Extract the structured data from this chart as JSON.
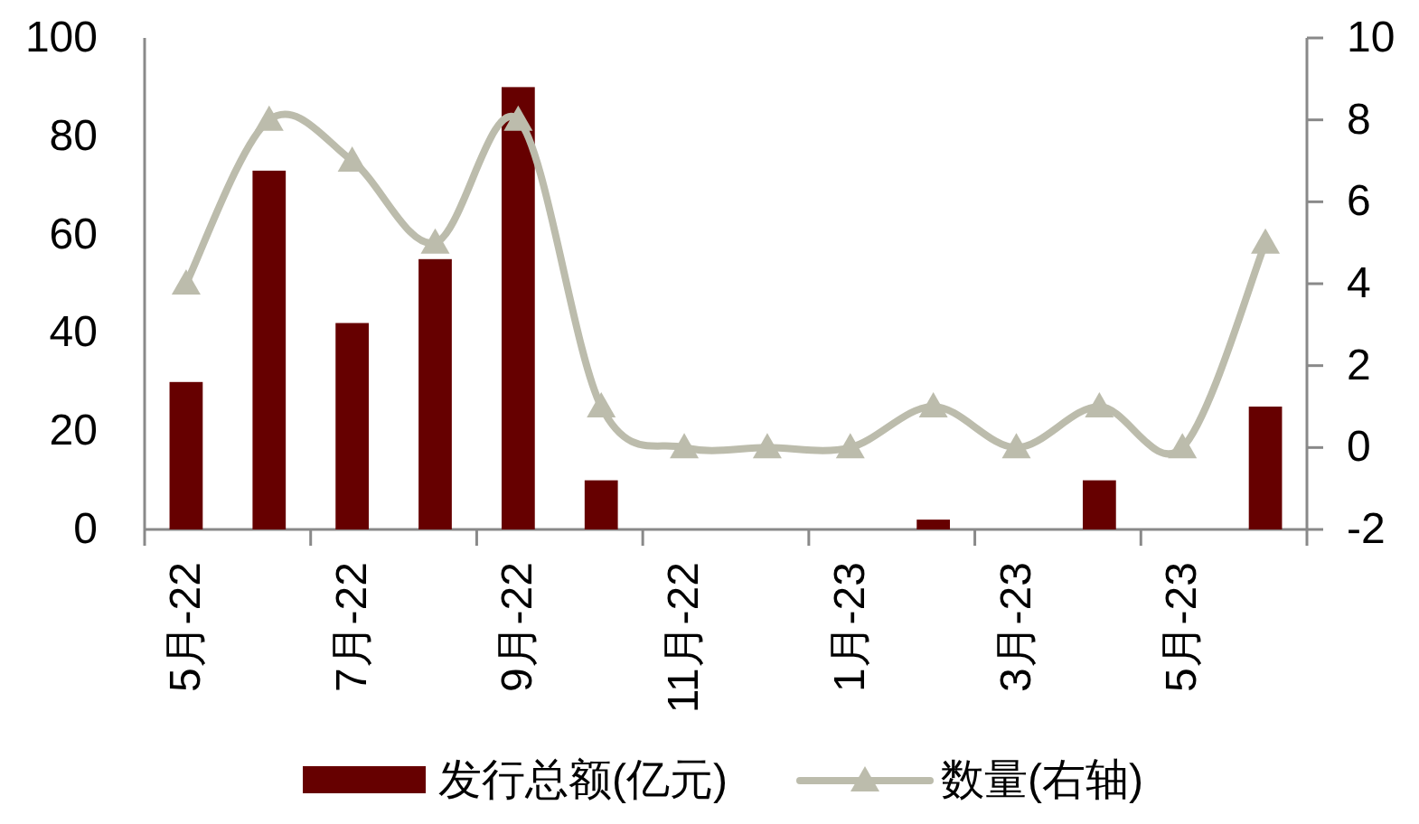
{
  "chart_data": {
    "type": "bar",
    "categories": [
      "5月-22",
      null,
      "7月-22",
      null,
      "9月-22",
      null,
      "11月-22",
      null,
      "1月-23",
      null,
      "3月-23",
      null,
      "5月-23",
      null
    ],
    "series": [
      {
        "name": "发行总额(亿元)",
        "color": "#660000",
        "values": [
          30,
          73,
          42,
          55,
          90,
          10,
          0,
          0,
          0,
          2,
          0,
          10,
          0,
          25
        ]
      },
      {
        "name": "数量(右轴)",
        "type": "line",
        "axis": "y2",
        "color": "#bcbcac",
        "marker": "triangle",
        "values": [
          4,
          8,
          7,
          5,
          8,
          1,
          0,
          0,
          0,
          1,
          0,
          1,
          0,
          5
        ]
      }
    ],
    "ylim": [
      0,
      100
    ],
    "yticks": [
      0,
      20,
      40,
      60,
      80,
      100
    ],
    "y2lim": [
      -2,
      10
    ],
    "y2ticks": [
      -2,
      0,
      2,
      4,
      6,
      8,
      10
    ],
    "legend": "bottom"
  }
}
